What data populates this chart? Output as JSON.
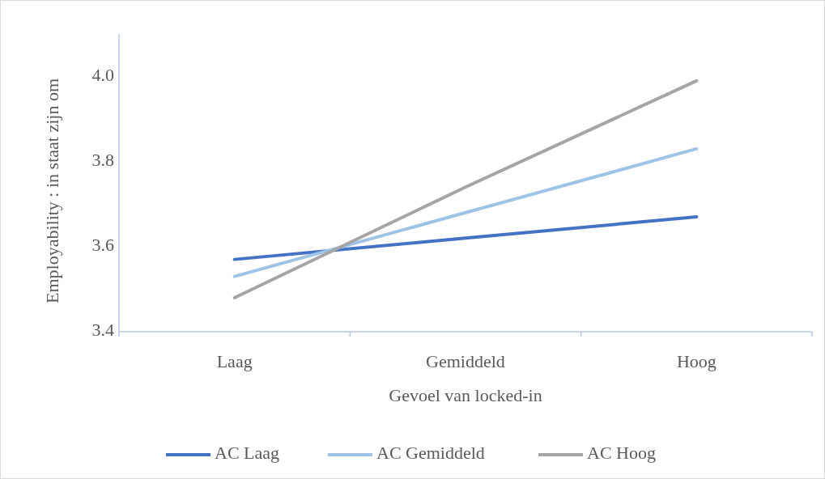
{
  "chart_data": {
    "type": "line",
    "xlabel": "Gevoel van locked-in",
    "ylabel": "Employability : in staat zijn om",
    "categories": [
      "Laag",
      "Gemiddeld",
      "Hoog"
    ],
    "series": [
      {
        "name": "AC Laag",
        "color": "#4472c4",
        "values": [
          3.57,
          3.62,
          3.67
        ]
      },
      {
        "name": "AC Gemiddeld",
        "color": "#9dc3e6",
        "values": [
          3.53,
          3.68,
          3.83
        ]
      },
      {
        "name": "AC Hoog",
        "color": "#a5a5a5",
        "values": [
          3.48,
          3.74,
          3.99
        ]
      }
    ],
    "ylim": [
      3.4,
      4.1
    ],
    "yticks": [
      3.4,
      3.6,
      3.8,
      {
        "value": 4,
        "label": "4.0"
      }
    ],
    "grid": false,
    "legend": "bottom",
    "marker": "none",
    "line_style": "solid"
  }
}
